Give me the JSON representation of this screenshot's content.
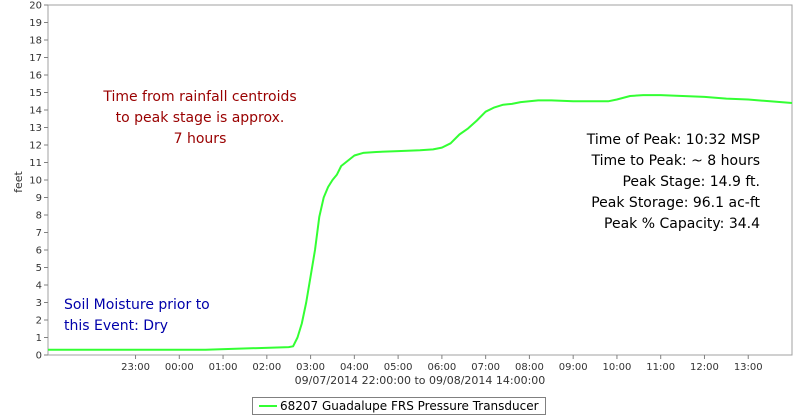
{
  "chart_data": {
    "type": "line",
    "ylabel": "feet",
    "ylim": [
      0,
      20
    ],
    "xlim_hours": [
      21.0,
      38.0
    ],
    "x_ticks": [
      {
        "h": 23,
        "label": "23:00"
      },
      {
        "h": 24,
        "label": "00:00"
      },
      {
        "h": 25,
        "label": "01:00"
      },
      {
        "h": 26,
        "label": "02:00"
      },
      {
        "h": 27,
        "label": "03:00"
      },
      {
        "h": 28,
        "label": "04:00"
      },
      {
        "h": 29,
        "label": "05:00"
      },
      {
        "h": 30,
        "label": "06:00"
      },
      {
        "h": 31,
        "label": "07:00"
      },
      {
        "h": 32,
        "label": "08:00"
      },
      {
        "h": 33,
        "label": "09:00"
      },
      {
        "h": 34,
        "label": "10:00"
      },
      {
        "h": 35,
        "label": "11:00"
      },
      {
        "h": 36,
        "label": "12:00"
      },
      {
        "h": 37,
        "label": "13:00"
      }
    ],
    "y_ticks": [
      0,
      1,
      2,
      3,
      4,
      5,
      6,
      7,
      8,
      9,
      10,
      11,
      12,
      13,
      14,
      15,
      16,
      17,
      18,
      19,
      20
    ],
    "xlabel": "09/07/2014 22:00:00 to 09/08/2014 14:00:00",
    "series": [
      {
        "name": "68207 Guadalupe FRS Pressure Transducer",
        "color": "#33ff33",
        "points": [
          [
            21.0,
            0.3
          ],
          [
            24.0,
            0.3
          ],
          [
            24.6,
            0.3
          ],
          [
            25.2,
            0.35
          ],
          [
            26.5,
            0.45
          ],
          [
            26.6,
            0.5
          ],
          [
            26.7,
            1.0
          ],
          [
            26.8,
            1.8
          ],
          [
            26.9,
            3.0
          ],
          [
            27.0,
            4.5
          ],
          [
            27.1,
            6.0
          ],
          [
            27.2,
            7.9
          ],
          [
            27.3,
            9.0
          ],
          [
            27.4,
            9.6
          ],
          [
            27.5,
            10.0
          ],
          [
            27.6,
            10.3
          ],
          [
            27.7,
            10.8
          ],
          [
            27.8,
            11.0
          ],
          [
            27.9,
            11.2
          ],
          [
            28.0,
            11.4
          ],
          [
            28.2,
            11.55
          ],
          [
            28.5,
            11.6
          ],
          [
            29.0,
            11.65
          ],
          [
            29.5,
            11.7
          ],
          [
            29.8,
            11.75
          ],
          [
            30.0,
            11.85
          ],
          [
            30.2,
            12.1
          ],
          [
            30.4,
            12.6
          ],
          [
            30.6,
            12.95
          ],
          [
            30.8,
            13.4
          ],
          [
            31.0,
            13.9
          ],
          [
            31.2,
            14.15
          ],
          [
            31.4,
            14.3
          ],
          [
            31.6,
            14.35
          ],
          [
            31.8,
            14.45
          ],
          [
            32.0,
            14.5
          ],
          [
            32.2,
            14.55
          ],
          [
            32.5,
            14.55
          ],
          [
            33.0,
            14.5
          ],
          [
            33.5,
            14.5
          ],
          [
            33.8,
            14.5
          ],
          [
            34.0,
            14.6
          ],
          [
            34.3,
            14.8
          ],
          [
            34.6,
            14.85
          ],
          [
            35.0,
            14.85
          ],
          [
            35.5,
            14.8
          ],
          [
            36.0,
            14.75
          ],
          [
            36.5,
            14.65
          ],
          [
            37.0,
            14.6
          ],
          [
            37.5,
            14.5
          ],
          [
            38.0,
            14.4
          ]
        ]
      }
    ],
    "annotations": [
      {
        "text": "Time from rainfall centroids",
        "color": "#990000"
      },
      {
        "text": "to peak stage is approx.",
        "color": "#990000"
      },
      {
        "text": "7 hours",
        "color": "#990000"
      },
      {
        "text": "Time of Peak: 10:32 MSP",
        "color": "#000000"
      },
      {
        "text": "Time to Peak: ~ 8 hours",
        "color": "#000000"
      },
      {
        "text": "Peak Stage: 14.9 ft.",
        "color": "#000000"
      },
      {
        "text": "Peak Storage: 96.1 ac-ft",
        "color": "#000000"
      },
      {
        "text": "Peak % Capacity: 34.4",
        "color": "#000000"
      },
      {
        "text": "Soil Moisture prior to",
        "color": "#0000aa"
      },
      {
        "text": "this Event: Dry",
        "color": "#0000aa"
      }
    ],
    "grid": false,
    "legend": "bottom-center"
  }
}
